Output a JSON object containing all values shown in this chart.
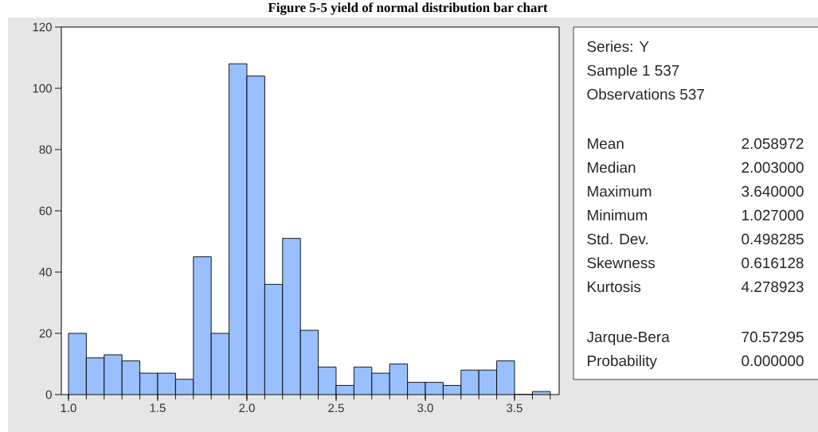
{
  "chart_data": [
    {
      "type": "histogram",
      "title": "Figure 5-5 yield of normal distribution bar chart",
      "color": "#99bfff",
      "bins": [
        1.0,
        1.1,
        1.2,
        1.3,
        1.4,
        1.5,
        1.6,
        1.7,
        1.8,
        1.9,
        2.0,
        2.1,
        2.2,
        2.3,
        2.4,
        2.5,
        2.6,
        2.7,
        2.8,
        2.9,
        3.0,
        3.1,
        3.2,
        3.3,
        3.4,
        3.5,
        3.6,
        3.7
      ],
      "values": [
        20,
        12,
        13,
        11,
        7,
        7,
        5,
        45,
        20,
        108,
        104,
        36,
        51,
        21,
        9,
        3,
        9,
        7,
        10,
        4,
        4,
        3,
        8,
        8,
        11,
        0,
        1
      ],
      "xlim": [
        0.96,
        3.75
      ],
      "ylim": [
        0,
        120
      ],
      "xticks": [
        {
          "value": 1.0,
          "label": "1.0"
        },
        {
          "value": 1.5,
          "label": "1.5"
        },
        {
          "value": 2.0,
          "label": "2.0"
        },
        {
          "value": 2.5,
          "label": "2.5"
        },
        {
          "value": 3.0,
          "label": "3.0"
        },
        {
          "value": 3.5,
          "label": "3.5"
        }
      ],
      "yticks": [
        0,
        20,
        40,
        60,
        80,
        100,
        120
      ]
    },
    {
      "type": "other",
      "annotations": [
        "Series: Y",
        "Sample 1 537",
        "Observations 537",
        "Mean",
        "2.058972",
        "Median",
        "2.003000",
        "Maximum",
        "3.640000",
        "Minimum",
        "1.027000",
        "Std. Dev.",
        "0.498285",
        "Skewness",
        "0.616128",
        "Kurtosis",
        "4.278923",
        "Jarque-Bera",
        "70.57295",
        "Probability",
        "0.000000"
      ]
    }
  ]
}
